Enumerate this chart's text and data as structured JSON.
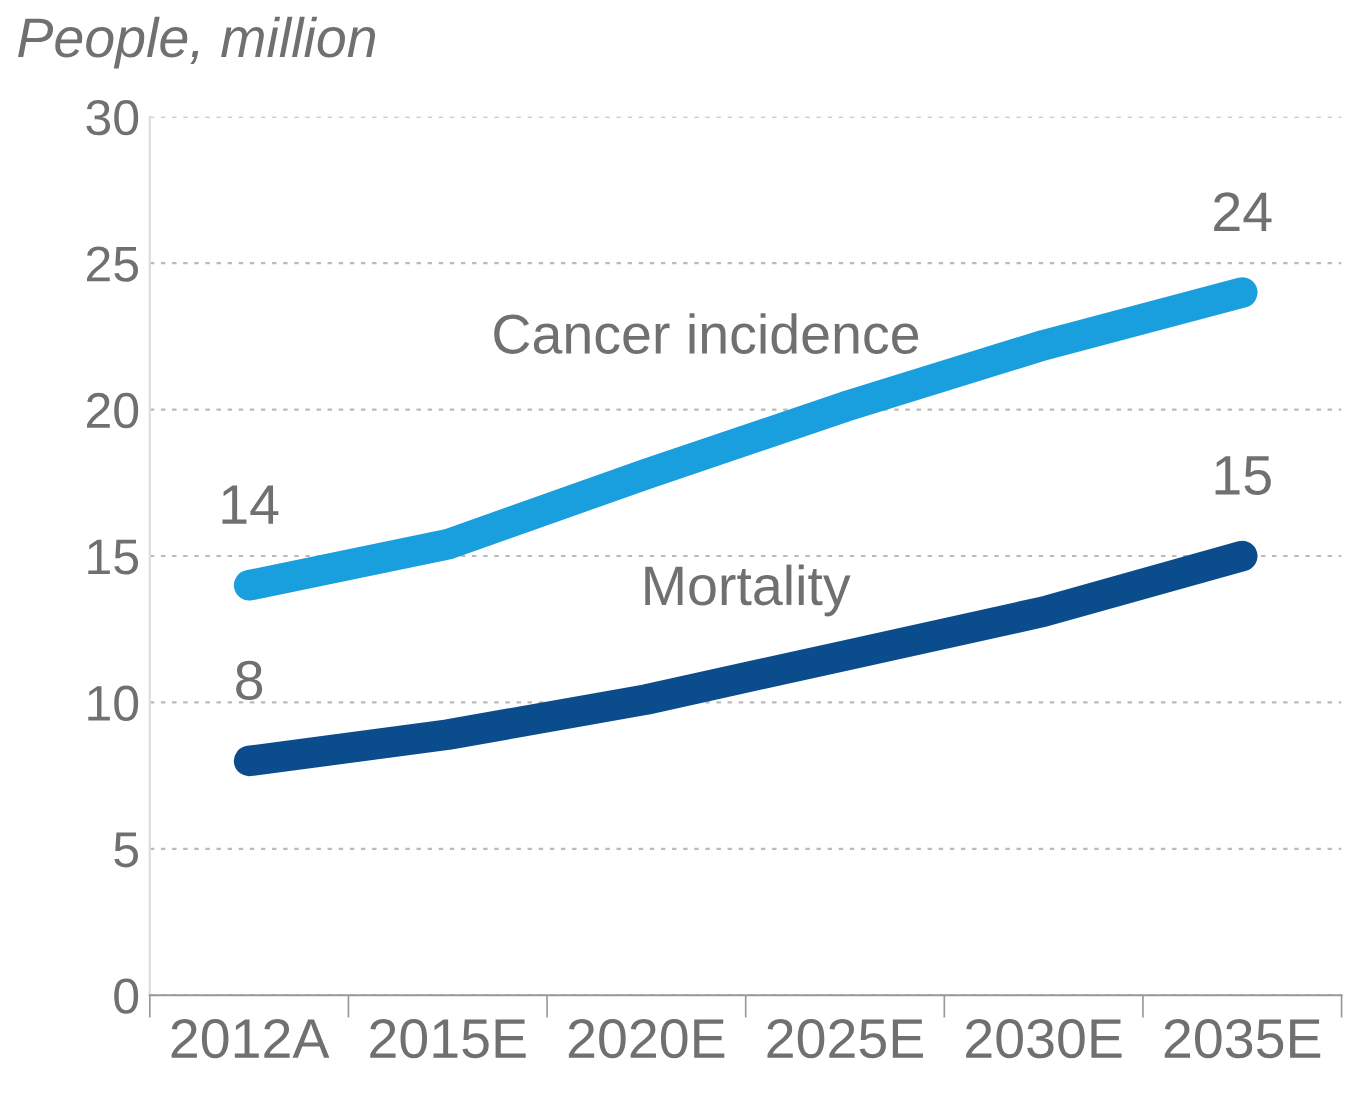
{
  "chart_data": {
    "type": "line",
    "ylabel": "People, million",
    "categories": [
      "2012A",
      "2015E",
      "2020E",
      "2025E",
      "2030E",
      "2035E"
    ],
    "series": [
      {
        "name": "Cancer incidence",
        "color": "#1a9fde",
        "values": [
          14,
          15.4,
          17.8,
          20.1,
          22.2,
          24
        ],
        "value_labels": [
          "14",
          null,
          null,
          null,
          null,
          "24"
        ]
      },
      {
        "name": "Mortality",
        "color": "#0b4d8c",
        "values": [
          8,
          8.9,
          10.1,
          11.6,
          13.1,
          15
        ],
        "value_labels": [
          "8",
          null,
          null,
          null,
          null,
          "15"
        ]
      }
    ],
    "ylim": [
      0,
      30
    ],
    "yticks": [
      0,
      5,
      10,
      15,
      20,
      25,
      30
    ],
    "grid": "y",
    "legend": false,
    "line_style": "solid"
  }
}
